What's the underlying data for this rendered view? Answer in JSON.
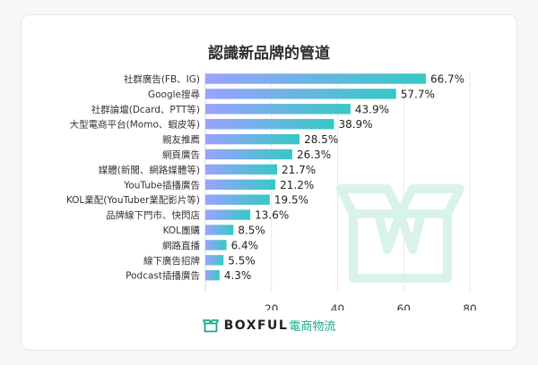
{
  "chart_data": {
    "type": "bar",
    "orientation": "horizontal",
    "title": "認識新品牌的管道",
    "categories": [
      "社群廣告(FB、IG)",
      "Google搜尋",
      "社群論壇(Dcard、PTT等)",
      "大型電商平台(Momo、蝦皮等)",
      "親友推薦",
      "網頁廣告",
      "媒體(新聞、網路媒體等)",
      "YouTube插播廣告",
      "KOL業配(YouTuber業配影片等)",
      "品牌線下門市、快閃店",
      "KOL團購",
      "網路直播",
      "線下廣告招牌",
      "Podcast插播廣告"
    ],
    "values": [
      66.7,
      57.7,
      43.9,
      38.9,
      28.5,
      26.3,
      21.7,
      21.2,
      19.5,
      13.6,
      8.5,
      6.4,
      5.5,
      4.3
    ],
    "value_labels": [
      "66.7%",
      "57.7%",
      "43.9%",
      "38.9%",
      "28.5%",
      "26.3%",
      "21.7%",
      "21.2%",
      "19.5%",
      "13.6%",
      "8.5%",
      "6.4%",
      "5.5%",
      "4.3%"
    ],
    "xlim": [
      0,
      80
    ],
    "xticks": [
      "20",
      "40",
      "60",
      "80"
    ],
    "xtick_values": [
      20,
      40,
      60,
      80
    ],
    "grid": true,
    "bar_gradient": [
      "#9aa2ff",
      "#35c9c4"
    ]
  },
  "brand": {
    "name": "BOXFUL",
    "sub": "電商物流",
    "icon": "box-icon",
    "color": "#1aa88a"
  }
}
